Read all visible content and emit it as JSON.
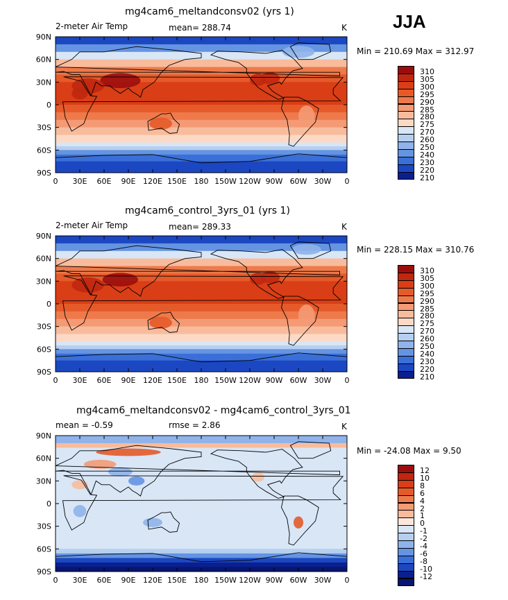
{
  "season": "JJA",
  "lon_ticks": [
    "0",
    "30E",
    "60E",
    "90E",
    "120E",
    "150E",
    "180",
    "150W",
    "120W",
    "90W",
    "60W",
    "30W",
    "0"
  ],
  "lat_ticks": [
    "90N",
    "60N",
    "30N",
    "0",
    "30S",
    "60S",
    "90S"
  ],
  "panels": [
    {
      "title": "mg4cam6_meltandconsv02 (yrs 1)",
      "left_label": "2-meter Air Temp",
      "center_label": "mean= 288.74",
      "right_label": "K",
      "minmax": "Min = 210.69 Max = 312.97",
      "kind": "abs",
      "levels": [
        "310",
        "305",
        "300",
        "295",
        "290",
        "285",
        "280",
        "275",
        "270",
        "260",
        "250",
        "240",
        "230",
        "220",
        "210"
      ],
      "colors": [
        "#9b0d0d",
        "#c02710",
        "#d93e16",
        "#e65a29",
        "#ee7a4b",
        "#f49a74",
        "#f8bc9d",
        "#fbd9c5",
        "#d8e6f6",
        "#b6cff0",
        "#8fb3ea",
        "#6494e2",
        "#3a6fd8",
        "#1c47c2",
        "#0b1f8f"
      ]
    },
    {
      "title": "mg4cam6_control_3yrs_01 (yrs 1)",
      "left_label": "2-meter Air Temp",
      "center_label": "mean= 289.33",
      "right_label": "K",
      "minmax": "Min = 228.15 Max = 310.76",
      "kind": "abs",
      "levels": [
        "310",
        "305",
        "300",
        "295",
        "290",
        "285",
        "280",
        "275",
        "270",
        "260",
        "250",
        "240",
        "230",
        "220",
        "210"
      ],
      "colors": [
        "#9b0d0d",
        "#c02710",
        "#d93e16",
        "#e65a29",
        "#ee7a4b",
        "#f49a74",
        "#f8bc9d",
        "#fbd9c5",
        "#d8e6f6",
        "#b6cff0",
        "#8fb3ea",
        "#6494e2",
        "#3a6fd8",
        "#1c47c2",
        "#0b1f8f"
      ]
    },
    {
      "title": "mg4cam6_meltandconsv02 - mg4cam6_control_3yrs_01",
      "left_label": "mean =   -0.59",
      "center_label": "rmse =    2.86",
      "right_label": "K",
      "minmax": "Min = -24.08 Max =    9.50",
      "kind": "diff",
      "levels": [
        "12",
        "10",
        "8",
        "6",
        "4",
        "2",
        "1",
        "0",
        "-1",
        "-2",
        "-4",
        "-6",
        "-8",
        "-10",
        "-12"
      ],
      "colors": [
        "#9b0d0d",
        "#c02710",
        "#d93e16",
        "#e65a29",
        "#ee7a4b",
        "#f49a74",
        "#f8bc9d",
        "#fde7da",
        "#d8e6f6",
        "#b6cff0",
        "#8fb3ea",
        "#6494e2",
        "#3a6fd8",
        "#1c47c2",
        "#0b1f8f",
        "#071670"
      ]
    }
  ]
}
